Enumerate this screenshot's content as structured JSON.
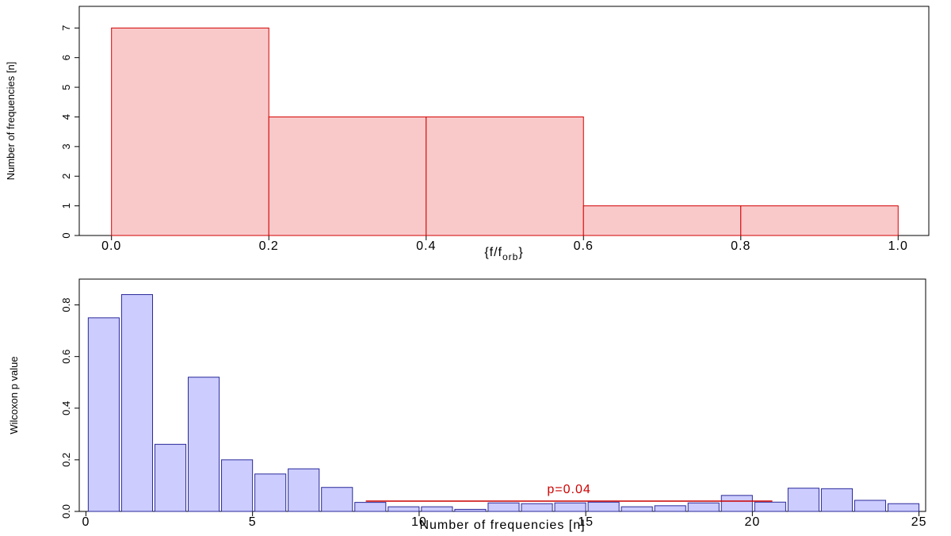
{
  "chart_data": [
    {
      "type": "histogram",
      "bins": [
        0,
        0.2,
        0.4,
        0.6,
        0.8,
        1.0
      ],
      "counts": [
        7,
        4,
        4,
        1,
        1
      ],
      "color": "#f9c9ca",
      "edge_color": "#d40000",
      "x_label": [
        "{f/f",
        "orb",
        "}"
      ],
      "y_label": "Number of frequencies [n]",
      "xlim": [
        -0.041,
        1.039
      ],
      "ylim": [
        0,
        7.73
      ],
      "xticks": [
        {
          "value": 0,
          "label": "0.0"
        },
        0.2,
        0.4,
        0.6,
        0.8,
        {
          "value": 1,
          "label": "1.0"
        }
      ],
      "yticks": [
        0,
        1,
        2,
        3,
        4,
        5,
        6,
        7
      ]
    },
    {
      "type": "bar",
      "x": [
        0.5,
        1.5,
        2.5,
        3.5,
        4.5,
        5.5,
        6.5,
        7.5,
        8.5,
        9.5,
        10.5,
        11.5,
        12.5,
        13.5,
        14.5,
        15.5,
        16.5,
        17.5,
        18.5,
        19.5,
        20.5,
        21.5,
        22.5,
        23.5,
        24.5
      ],
      "values": [
        0.75,
        0.84,
        0.26,
        0.52,
        0.2,
        0.145,
        0.165,
        0.093,
        0.035,
        0.018,
        0.018,
        0.008,
        0.033,
        0.03,
        0.033,
        0.036,
        0.018,
        0.022,
        0.033,
        0.062,
        0.036,
        0.09,
        0.088,
        0.043,
        0.03
      ],
      "color": "#ccccff",
      "edge_color": "#2a2a9a",
      "x_label": "Number of frequencies [n]",
      "y_label": "Wilcoxon p value",
      "xlim": [
        -0.2,
        25.2
      ],
      "ylim": [
        0,
        0.9
      ],
      "xticks": [
        0,
        5,
        10,
        15,
        20,
        25
      ],
      "yticks": [
        {
          "value": 0,
          "label": "0.0"
        },
        0.2,
        0.4,
        0.6,
        0.8
      ],
      "annotation": {
        "text": "p=0.04",
        "y": 0.04,
        "x_start": 8.4,
        "x_end": 20.6,
        "color": "#cc0000"
      }
    }
  ]
}
